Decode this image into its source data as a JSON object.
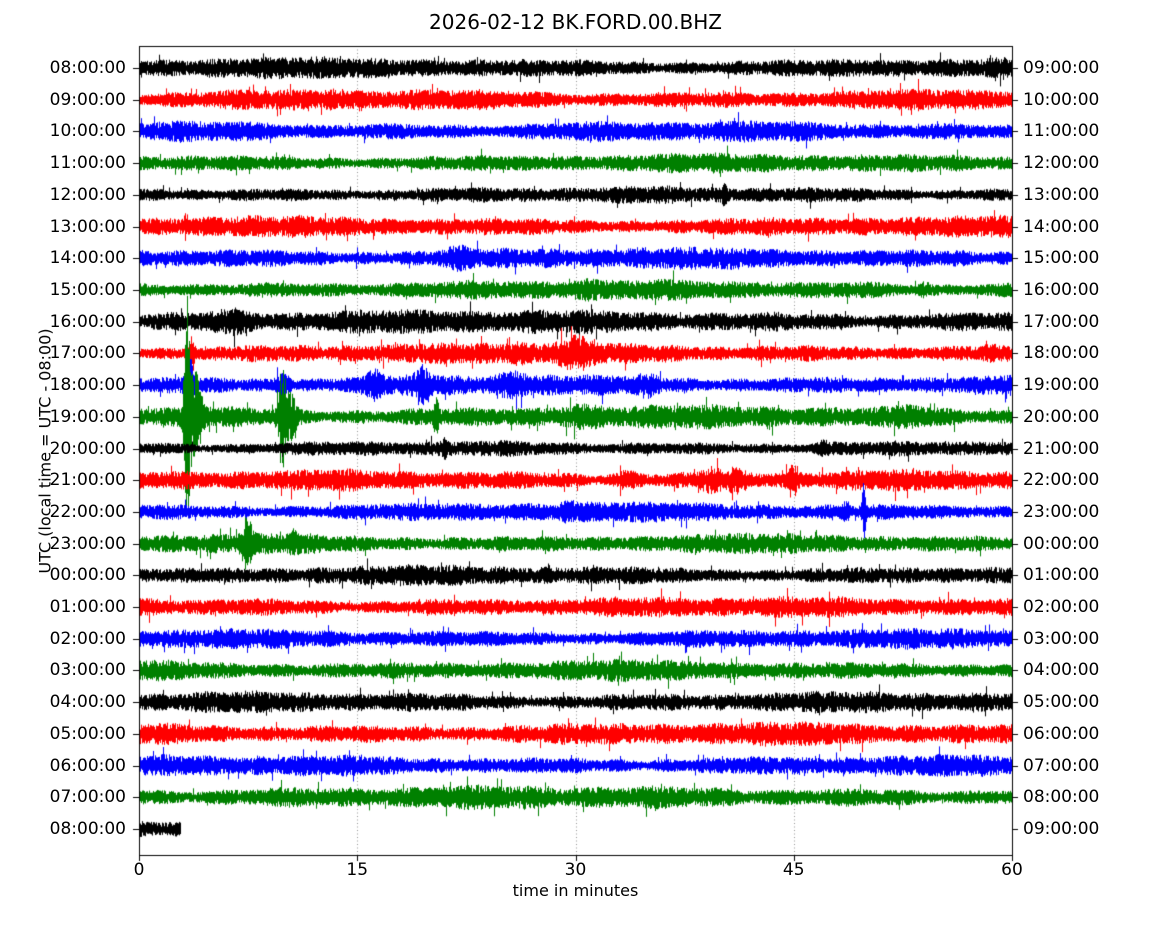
{
  "chart_data": {
    "type": "line",
    "subtype": "seismogram-dayplot",
    "title": "2026-02-12 BK.FORD.00.BHZ",
    "xlabel": "time in minutes",
    "ylabel": "UTC (local time = UTC - 08:00)",
    "x_range": [
      0,
      60
    ],
    "x_ticks": [
      0,
      15,
      30,
      45,
      60
    ],
    "x_tick_labels": [
      "0",
      "15",
      "30",
      "45",
      "60"
    ],
    "x_gridlines": [
      15,
      30,
      45
    ],
    "grid_style": "dotted-vertical",
    "legend": "none",
    "trace_color_cycle": [
      "#000000",
      "#ff0000",
      "#0000ff",
      "#008000"
    ],
    "rows_are_hours": true,
    "utc_offset_label": "UTC - 08:00",
    "rows": [
      {
        "left": "08:00:00",
        "right": "09:00:00",
        "color": "#000000",
        "amp": 1.0,
        "end": 60,
        "events": []
      },
      {
        "left": "09:00:00",
        "right": "10:00:00",
        "color": "#ff0000",
        "amp": 1.0,
        "end": 60,
        "events": [
          [
            13.2,
            1.6,
            0.25
          ]
        ]
      },
      {
        "left": "10:00:00",
        "right": "11:00:00",
        "color": "#0000ff",
        "amp": 1.0,
        "end": 60,
        "events": []
      },
      {
        "left": "11:00:00",
        "right": "12:00:00",
        "color": "#008000",
        "amp": 0.9,
        "end": 60,
        "events": []
      },
      {
        "left": "12:00:00",
        "right": "13:00:00",
        "color": "#000000",
        "amp": 0.8,
        "end": 60,
        "events": [
          [
            40.2,
            1.8,
            0.12
          ]
        ]
      },
      {
        "left": "13:00:00",
        "right": "14:00:00",
        "color": "#ff0000",
        "amp": 1.0,
        "end": 60,
        "events": []
      },
      {
        "left": "14:00:00",
        "right": "15:00:00",
        "color": "#0000ff",
        "amp": 1.05,
        "end": 60,
        "events": [
          [
            22,
            1.4,
            0.8
          ]
        ]
      },
      {
        "left": "15:00:00",
        "right": "16:00:00",
        "color": "#008000",
        "amp": 0.95,
        "end": 60,
        "events": [
          [
            30.5,
            1.4,
            0.7
          ],
          [
            54,
            1.6,
            0.3
          ]
        ]
      },
      {
        "left": "16:00:00",
        "right": "17:00:00",
        "color": "#000000",
        "amp": 1.15,
        "end": 60,
        "events": [
          [
            6.5,
            1.5,
            1.2
          ]
        ]
      },
      {
        "left": "17:00:00",
        "right": "18:00:00",
        "color": "#ff0000",
        "amp": 1.0,
        "end": 60,
        "events": [
          [
            3.6,
            4.5,
            0.12
          ],
          [
            26,
            1.5,
            0.5
          ],
          [
            29.8,
            1.9,
            1.0
          ]
        ]
      },
      {
        "left": "18:00:00",
        "right": "19:00:00",
        "color": "#0000ff",
        "amp": 1.0,
        "end": 60,
        "events": [
          [
            3.4,
            5.0,
            0.2
          ],
          [
            9.9,
            2.6,
            0.35
          ],
          [
            16.2,
            2.0,
            0.4
          ],
          [
            19.5,
            2.2,
            0.35
          ],
          [
            25.8,
            1.7,
            0.7
          ],
          [
            35,
            1.5,
            0.5
          ]
        ]
      },
      {
        "left": "19:00:00",
        "right": "20:00:00",
        "color": "#008000",
        "amp": 1.1,
        "end": 60,
        "events": [
          [
            3.3,
            12.0,
            0.15
          ],
          [
            3.9,
            5.0,
            0.3
          ],
          [
            9.8,
            6.5,
            0.2
          ],
          [
            10.4,
            3.0,
            0.3
          ],
          [
            20.4,
            2.8,
            0.12
          ],
          [
            30,
            1.5,
            1.2
          ],
          [
            53,
            1.4,
            0.8
          ]
        ]
      },
      {
        "left": "20:00:00",
        "right": "21:00:00",
        "color": "#000000",
        "amp": 0.75,
        "end": 60,
        "events": [
          [
            21,
            1.8,
            0.1
          ],
          [
            47,
            1.5,
            0.25
          ]
        ]
      },
      {
        "left": "21:00:00",
        "right": "22:00:00",
        "color": "#ff0000",
        "amp": 1.0,
        "end": 60,
        "events": [
          [
            33.5,
            1.7,
            0.7
          ],
          [
            39.3,
            2.0,
            0.5
          ],
          [
            41,
            1.7,
            0.4
          ],
          [
            44.9,
            2.6,
            0.2
          ]
        ]
      },
      {
        "left": "22:00:00",
        "right": "23:00:00",
        "color": "#0000ff",
        "amp": 0.95,
        "end": 60,
        "events": [
          [
            29.5,
            1.5,
            0.4
          ],
          [
            48.6,
            1.8,
            0.2
          ],
          [
            49.8,
            4.5,
            0.1
          ]
        ]
      },
      {
        "left": "23:00:00",
        "right": "00:00:00",
        "color": "#008000",
        "amp": 0.95,
        "end": 60,
        "events": [
          [
            7.4,
            3.2,
            0.25
          ],
          [
            10.6,
            1.8,
            0.2
          ]
        ]
      },
      {
        "left": "00:00:00",
        "right": "01:00:00",
        "color": "#000000",
        "amp": 0.95,
        "end": 60,
        "events": []
      },
      {
        "left": "01:00:00",
        "right": "02:00:00",
        "color": "#ff0000",
        "amp": 1.0,
        "end": 60,
        "events": []
      },
      {
        "left": "02:00:00",
        "right": "03:00:00",
        "color": "#0000ff",
        "amp": 0.95,
        "end": 60,
        "events": []
      },
      {
        "left": "03:00:00",
        "right": "04:00:00",
        "color": "#008000",
        "amp": 1.0,
        "end": 60,
        "events": []
      },
      {
        "left": "04:00:00",
        "right": "05:00:00",
        "color": "#000000",
        "amp": 1.0,
        "end": 60,
        "events": []
      },
      {
        "left": "05:00:00",
        "right": "06:00:00",
        "color": "#ff0000",
        "amp": 1.1,
        "end": 60,
        "events": []
      },
      {
        "left": "06:00:00",
        "right": "07:00:00",
        "color": "#0000ff",
        "amp": 1.0,
        "end": 60,
        "events": []
      },
      {
        "left": "07:00:00",
        "right": "08:00:00",
        "color": "#008000",
        "amp": 1.1,
        "end": 60,
        "events": []
      },
      {
        "left": "08:00:00",
        "right": "09:00:00",
        "color": "#000000",
        "amp": 1.0,
        "end": 2.8,
        "events": []
      }
    ]
  }
}
